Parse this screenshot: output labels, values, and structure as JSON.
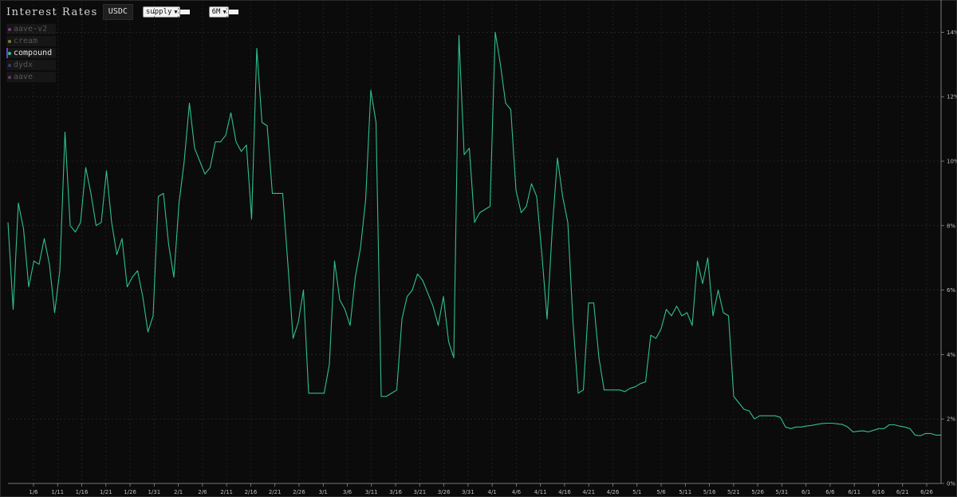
{
  "header": {
    "title": "Interest Rates",
    "asset": "USDC",
    "side_select": "supply",
    "range_select": "6M"
  },
  "legend": {
    "items": [
      {
        "label": "aave-v2",
        "color": "#7a3f7a",
        "active": false
      },
      {
        "label": "cream",
        "color": "#8a7a30",
        "active": false
      },
      {
        "label": "compound",
        "color": "#2fc08e",
        "active": true
      },
      {
        "label": "dydx",
        "color": "#3a3a6a",
        "active": false
      },
      {
        "label": "aave",
        "color": "#6a3a5a",
        "active": false
      }
    ]
  },
  "chart_data": {
    "type": "line",
    "x_tick_labels": [
      "1/6",
      "1/11",
      "1/16",
      "1/21",
      "1/26",
      "1/31",
      "2/1",
      "2/6",
      "2/11",
      "2/16",
      "2/21",
      "2/26",
      "3/1",
      "3/6",
      "3/11",
      "3/16",
      "3/21",
      "3/26",
      "3/31",
      "4/1",
      "4/6",
      "4/11",
      "4/16",
      "4/21",
      "4/26",
      "5/1",
      "5/6",
      "5/11",
      "5/16",
      "5/21",
      "5/26",
      "5/31",
      "6/1",
      "6/6",
      "6/11",
      "6/16",
      "6/21",
      "6/26"
    ],
    "y_ticks": [
      "0%",
      "2%",
      "4%",
      "6%",
      "8%",
      "10%",
      "12%",
      "14%"
    ],
    "ylim": [
      0,
      15
    ],
    "grid": true,
    "series": [
      {
        "name": "compound",
        "color": "#2fc08e",
        "values": [
          8.1,
          5.4,
          8.7,
          7.9,
          6.1,
          6.9,
          6.8,
          7.6,
          6.8,
          5.3,
          6.6,
          10.9,
          8.0,
          7.8,
          8.1,
          9.8,
          9.0,
          8.0,
          8.1,
          9.7,
          8.1,
          7.1,
          7.6,
          6.1,
          6.4,
          6.6,
          5.8,
          4.7,
          5.2,
          8.9,
          9.0,
          7.4,
          6.4,
          8.7,
          10.0,
          11.8,
          10.4,
          10.0,
          9.6,
          9.8,
          10.6,
          10.6,
          10.8,
          11.5,
          10.6,
          10.3,
          10.5,
          8.2,
          13.5,
          11.2,
          11.1,
          9.0,
          9.0,
          9.0,
          6.8,
          4.5,
          5.0,
          6.0,
          2.8,
          2.8,
          2.8,
          2.8,
          3.7,
          6.9,
          5.7,
          5.4,
          4.9,
          6.4,
          7.3,
          8.8,
          12.2,
          11.2,
          2.7,
          2.7,
          2.8,
          2.9,
          5.1,
          5.8,
          6.0,
          6.5,
          6.3,
          5.9,
          5.5,
          4.9,
          5.8,
          4.4,
          3.9,
          13.9,
          10.2,
          10.4,
          8.1,
          8.4,
          8.5,
          8.6,
          14.0,
          13.0,
          11.8,
          11.6,
          9.1,
          8.4,
          8.6,
          9.3,
          8.9,
          7.1,
          5.1,
          7.9,
          10.1,
          8.9,
          8.1,
          5.0,
          2.8,
          2.9,
          5.6,
          5.6,
          3.9,
          2.9,
          2.9,
          2.9,
          2.9,
          2.85,
          2.95,
          3.0,
          3.1,
          3.15,
          4.6,
          4.5,
          4.8,
          5.4,
          5.2,
          5.5,
          5.2,
          5.3,
          4.9,
          6.9,
          6.2,
          7.0,
          5.2,
          6.0,
          5.3,
          5.2,
          2.7,
          2.5,
          2.3,
          2.25,
          2.0,
          2.1,
          2.1,
          2.1,
          2.1,
          2.05,
          1.75,
          1.7,
          1.75,
          1.75,
          1.78,
          1.8,
          1.83,
          1.86,
          1.87,
          1.87,
          1.85,
          1.83,
          1.75,
          1.6,
          1.62,
          1.63,
          1.6,
          1.65,
          1.7,
          1.7,
          1.82,
          1.82,
          1.78,
          1.75,
          1.7,
          1.5,
          1.48,
          1.55,
          1.55,
          1.5,
          1.5
        ]
      }
    ]
  }
}
